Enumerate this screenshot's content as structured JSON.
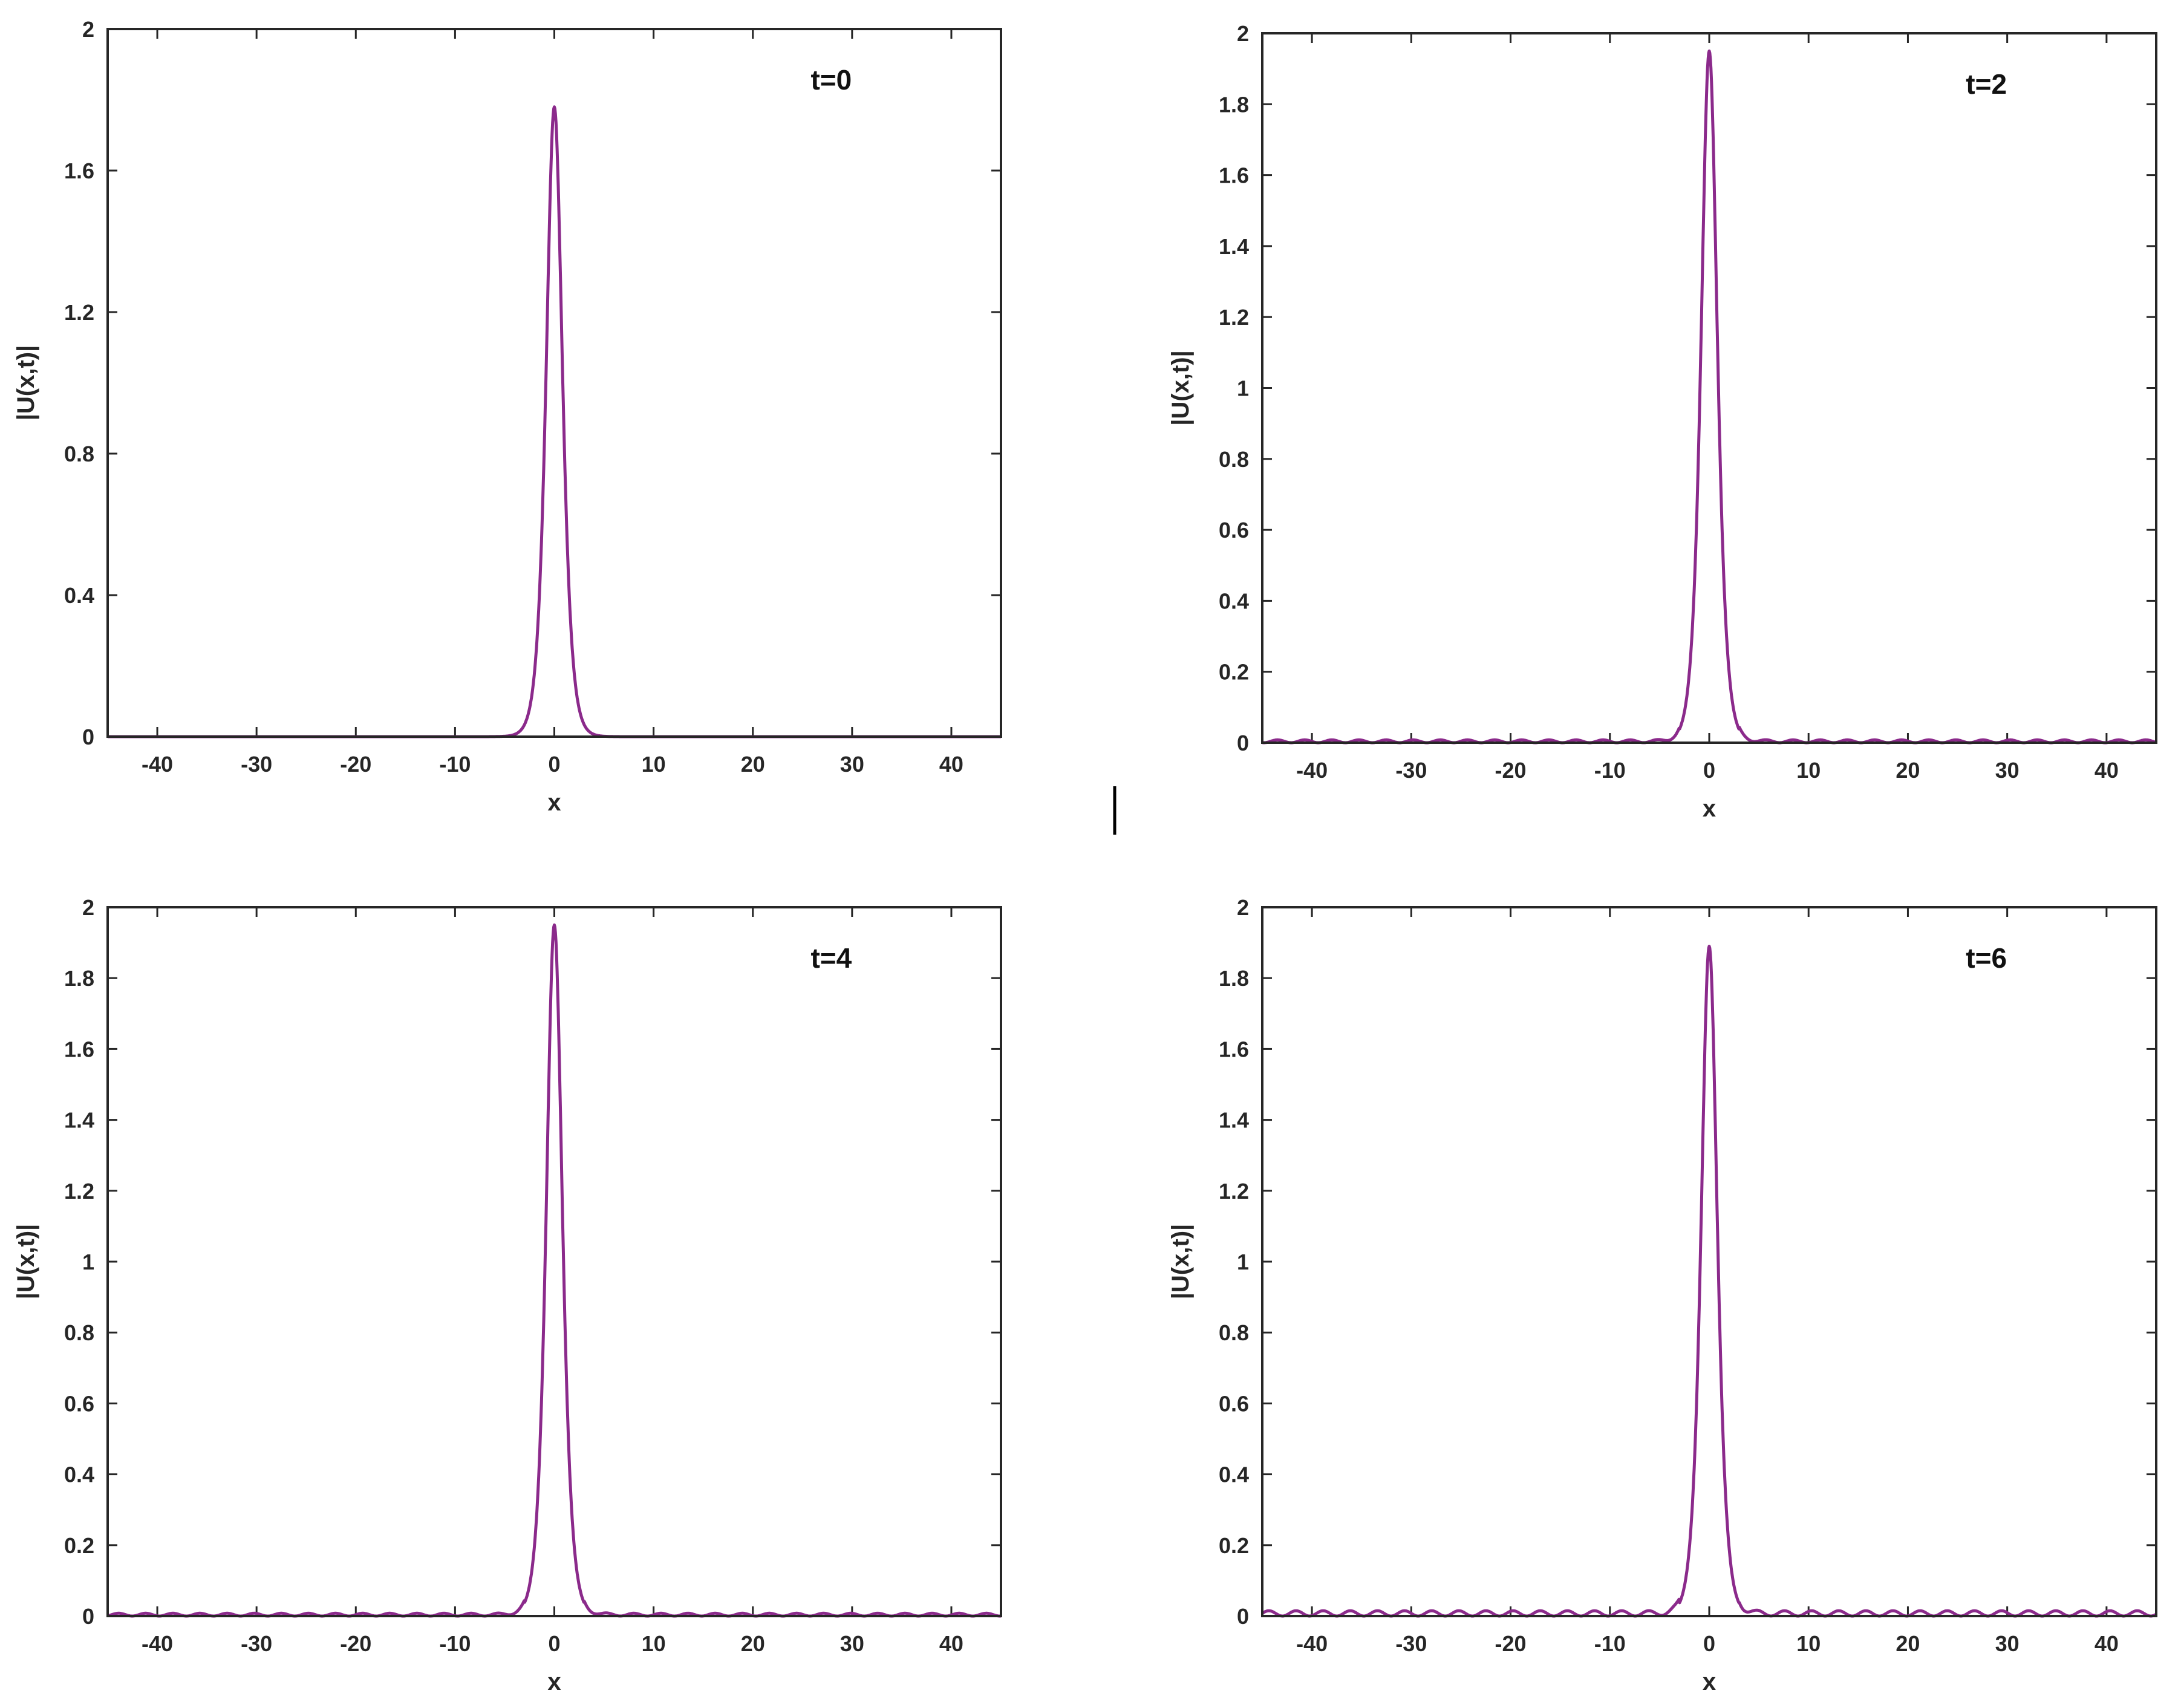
{
  "colors": {
    "series": "#8B2A8B",
    "axis": "#262626",
    "background": "#ffffff"
  },
  "chart_data": [
    {
      "type": "line",
      "xlabel": "x",
      "ylabel": "|U(x,t)|",
      "annotation": "t=0",
      "xlim": [
        -45,
        45
      ],
      "ylim": [
        0,
        2
      ],
      "xticks": [
        -40,
        -30,
        -20,
        -10,
        0,
        10,
        20,
        30,
        40
      ],
      "yticks": [
        0,
        0.4,
        0.8,
        1.2,
        1.6,
        2
      ],
      "ytick_labels": [
        "0",
        "0.4",
        "0.8",
        "1.2",
        "1.6",
        "2"
      ],
      "peak": 1.78,
      "ripple_amplitude": 0,
      "series": [
        {
          "x": [
            -45,
            -3,
            -2.5,
            -2,
            -1.5,
            -1,
            -0.5,
            0,
            0.5,
            1,
            1.5,
            2,
            2.5,
            3,
            45
          ],
          "y": [
            0,
            0.005,
            0.05,
            0.21,
            0.55,
            1.05,
            1.55,
            1.78,
            1.55,
            1.05,
            0.55,
            0.21,
            0.05,
            0.005,
            0
          ]
        }
      ]
    },
    {
      "type": "line",
      "xlabel": "x",
      "ylabel": "|U(x,t)|",
      "annotation": "t=2",
      "xlim": [
        -45,
        45
      ],
      "ylim": [
        0,
        2
      ],
      "xticks": [
        -40,
        -30,
        -20,
        -10,
        0,
        10,
        20,
        30,
        40
      ],
      "yticks": [
        0,
        0.2,
        0.4,
        0.6,
        0.8,
        1,
        1.2,
        1.4,
        1.6,
        1.8,
        2
      ],
      "ytick_labels": [
        "0",
        "0.2",
        "0.4",
        "0.6",
        "0.8",
        "1",
        "1.2",
        "1.4",
        "1.6",
        "1.8",
        "2"
      ],
      "peak": 1.95,
      "ripple_amplitude": 0.008,
      "series": [
        {
          "x": [
            -45,
            -3,
            -2.5,
            -2,
            -1.5,
            -1,
            -0.5,
            0,
            0.5,
            1,
            1.5,
            2,
            2.5,
            3,
            45
          ],
          "y": [
            0.005,
            0.005,
            0.05,
            0.2,
            0.6,
            1.2,
            1.75,
            1.95,
            1.75,
            1.2,
            0.6,
            0.2,
            0.05,
            0.005,
            0.005
          ]
        }
      ]
    },
    {
      "type": "line",
      "xlabel": "x",
      "ylabel": "|U(x,t)|",
      "annotation": "t=4",
      "xlim": [
        -45,
        45
      ],
      "ylim": [
        0,
        2
      ],
      "xticks": [
        -40,
        -30,
        -20,
        -10,
        0,
        10,
        20,
        30,
        40
      ],
      "yticks": [
        0,
        0.2,
        0.4,
        0.6,
        0.8,
        1,
        1.2,
        1.4,
        1.6,
        1.8,
        2
      ],
      "ytick_labels": [
        "0",
        "0.2",
        "0.4",
        "0.6",
        "0.8",
        "1",
        "1.2",
        "1.4",
        "1.6",
        "1.8",
        "2"
      ],
      "peak": 1.95,
      "ripple_amplitude": 0.008,
      "series": [
        {
          "x": [
            -45,
            -3,
            -2.5,
            -2,
            -1.5,
            -1,
            -0.5,
            0,
            0.5,
            1,
            1.5,
            2,
            2.5,
            3,
            45
          ],
          "y": [
            0.005,
            0.005,
            0.05,
            0.2,
            0.6,
            1.2,
            1.75,
            1.95,
            1.75,
            1.2,
            0.6,
            0.2,
            0.05,
            0.005,
            0.005
          ]
        }
      ]
    },
    {
      "type": "line",
      "xlabel": "x",
      "ylabel": "|U(x,t)|",
      "annotation": "t=6",
      "xlim": [
        -45,
        45
      ],
      "ylim": [
        0,
        2
      ],
      "xticks": [
        -40,
        -30,
        -20,
        -10,
        0,
        10,
        20,
        30,
        40
      ],
      "yticks": [
        0,
        0.2,
        0.4,
        0.6,
        0.8,
        1,
        1.2,
        1.4,
        1.6,
        1.8,
        2
      ],
      "ytick_labels": [
        "0",
        "0.2",
        "0.4",
        "0.6",
        "0.8",
        "1",
        "1.2",
        "1.4",
        "1.6",
        "1.8",
        "2"
      ],
      "peak": 1.89,
      "ripple_amplitude": 0.015,
      "series": [
        {
          "x": [
            -45,
            -3,
            -2.5,
            -2,
            -1.5,
            -1,
            -0.5,
            0,
            0.5,
            1,
            1.5,
            2,
            2.5,
            3,
            45
          ],
          "y": [
            0.01,
            0.005,
            0.05,
            0.2,
            0.58,
            1.15,
            1.7,
            1.89,
            1.7,
            1.15,
            0.58,
            0.2,
            0.05,
            0.005,
            0.01
          ]
        }
      ]
    }
  ]
}
